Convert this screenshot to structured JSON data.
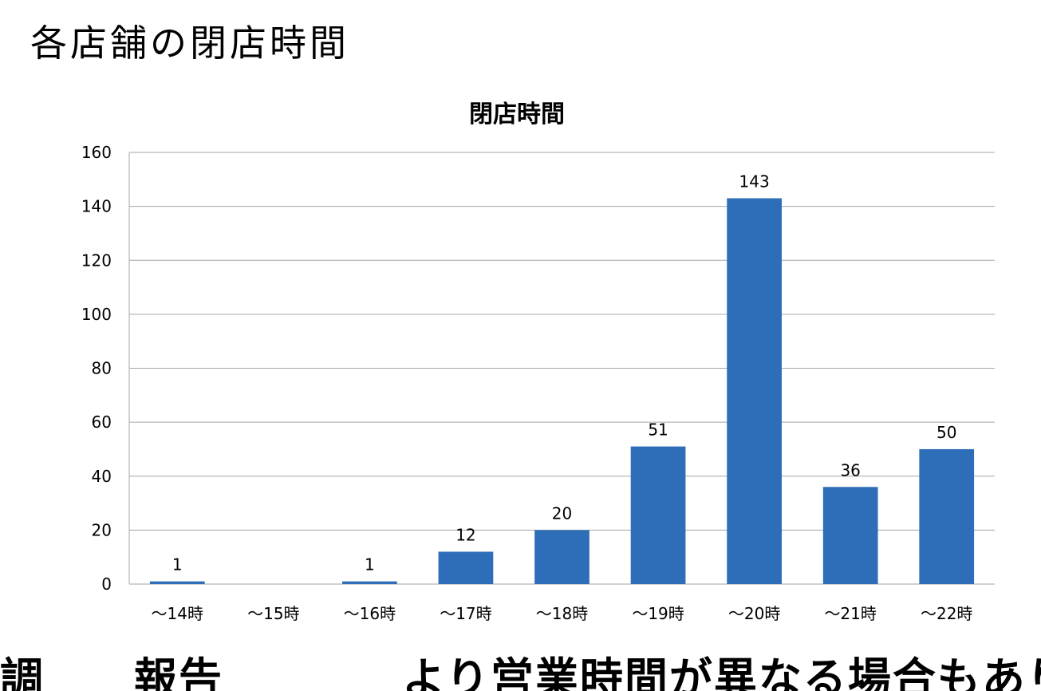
{
  "page": {
    "heading": "各店舗の閉店時間",
    "bottom_text": "調　　報告　　　　より営業時間が異なる場合もあり、営業日数・自"
  },
  "colors": {
    "bar": "#2E6DB8",
    "grid": "#A6A6A6",
    "text": "#000000"
  },
  "chart_data": {
    "type": "bar",
    "title": "閉店時間",
    "xlabel": "",
    "ylabel": "",
    "categories": [
      "～14時",
      "～15時",
      "～16時",
      "～17時",
      "～18時",
      "～19時",
      "～20時",
      "～21時",
      "～22時"
    ],
    "values": [
      1,
      0,
      1,
      12,
      20,
      51,
      143,
      36,
      50
    ],
    "data_labels": [
      "1",
      "",
      "1",
      "12",
      "20",
      "51",
      "143",
      "36",
      "50"
    ],
    "ylim": [
      0,
      160
    ],
    "yticks": [
      0,
      20,
      40,
      60,
      80,
      100,
      120,
      140,
      160
    ],
    "grid": true,
    "legend": "none"
  }
}
